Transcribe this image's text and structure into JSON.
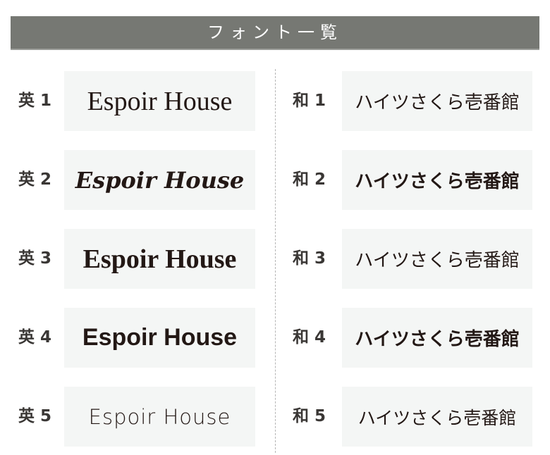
{
  "header": {
    "title": "フォント一覧"
  },
  "english": [
    {
      "label": "英 1",
      "sample": "Espoir House"
    },
    {
      "label": "英 2",
      "sample": "Espoir House"
    },
    {
      "label": "英 3",
      "sample": "Espoir House"
    },
    {
      "label": "英 4",
      "sample": "Espoir House"
    },
    {
      "label": "英 5",
      "sample": "Espoir House"
    }
  ],
  "japanese": [
    {
      "label": "和 1",
      "sample": "ハイツさくら壱番館"
    },
    {
      "label": "和 2",
      "sample": "ハイツさくら壱番館"
    },
    {
      "label": "和 3",
      "sample": "ハイツさくら壱番館"
    },
    {
      "label": "和 4",
      "sample": "ハイツさくら壱番館"
    },
    {
      "label": "和 5",
      "sample": "ハイツさくら壱番館"
    }
  ]
}
